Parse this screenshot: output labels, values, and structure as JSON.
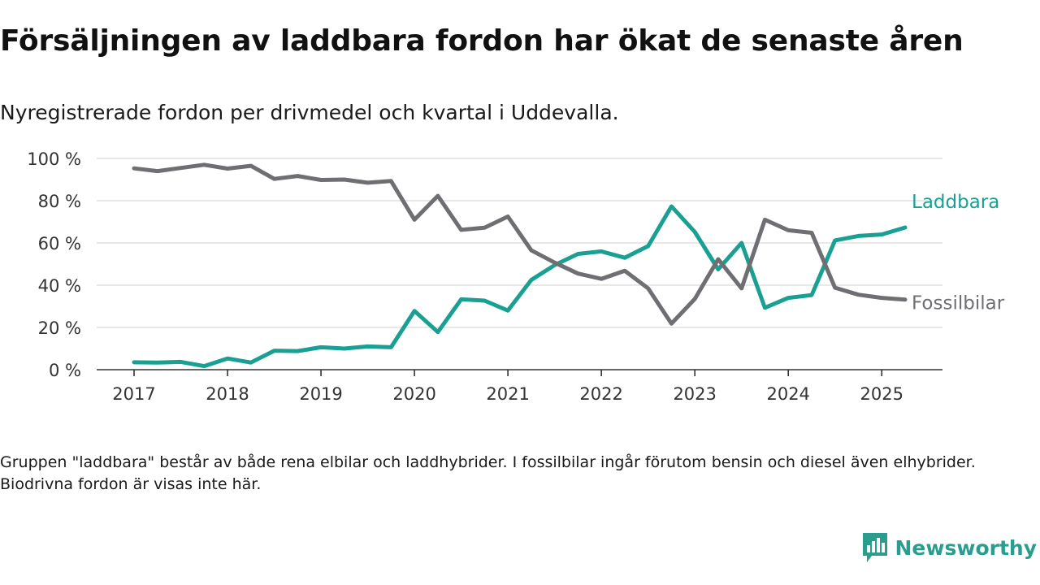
{
  "title": "Försäljningen av laddbara fordon har ökat de senaste åren",
  "subtitle": "Nyregistrerade fordon per drivmedel och kvartal i Uddevalla.",
  "footnote": "Gruppen \"laddbara\" består av både rena elbilar och laddhybrider. I fossilbilar ingår förutom bensin och diesel även elhybrider. Biodrivna fordon är visas inte här.",
  "brand": {
    "name": "Newsworthy",
    "icon": "newsworthy-logo-icon",
    "color": "#2a9d8f"
  },
  "chart_data": {
    "type": "line",
    "title": "Försäljningen av laddbara fordon har ökat de senaste åren",
    "subtitle": "Nyregistrerade fordon per drivmedel och kvartal i Uddevalla.",
    "xlabel": "",
    "ylabel": "",
    "x_start_year": 2017,
    "quarters_per_year": 4,
    "xlim": [
      2016.6,
      2025.65
    ],
    "ylim": [
      0,
      100
    ],
    "x_ticks": [
      2017,
      2018,
      2019,
      2020,
      2021,
      2022,
      2023,
      2024,
      2025
    ],
    "x_tick_labels": [
      "2017",
      "2018",
      "2019",
      "2020",
      "2021",
      "2022",
      "2023",
      "2024",
      "2025"
    ],
    "y_ticks": [
      0,
      20,
      40,
      60,
      80,
      100
    ],
    "y_tick_labels": [
      "0 %",
      "20 %",
      "40 %",
      "60 %",
      "80 %",
      "100 %"
    ],
    "grid": true,
    "legend": "direct labels at line ends (right)",
    "series": [
      {
        "name": "Laddbara",
        "color": "#1aa093",
        "values": [
          3.5,
          3.4,
          3.7,
          1.7,
          5.3,
          3.4,
          9,
          8.8,
          10.6,
          10,
          11,
          10.6,
          27.8,
          17.8,
          33.3,
          32.7,
          28,
          42.5,
          49.5,
          54.8,
          56,
          53,
          58.5,
          77.3,
          65.2,
          47.5,
          60,
          29.3,
          34,
          35.3,
          61.2,
          63.3,
          64,
          67.3
        ]
      },
      {
        "name": "Fossilbilar",
        "color": "#6e6e73",
        "values": [
          95.3,
          94,
          95.5,
          97,
          95.2,
          96.5,
          90.3,
          91.7,
          89.8,
          90,
          88.5,
          89.3,
          71,
          82.3,
          66.2,
          67.2,
          72.5,
          56.5,
          50.7,
          45.5,
          43,
          46.8,
          38.5,
          21.8,
          33.5,
          52.3,
          38.5,
          71,
          66,
          64.8,
          38.8,
          35.5,
          34,
          33.2
        ]
      }
    ]
  }
}
